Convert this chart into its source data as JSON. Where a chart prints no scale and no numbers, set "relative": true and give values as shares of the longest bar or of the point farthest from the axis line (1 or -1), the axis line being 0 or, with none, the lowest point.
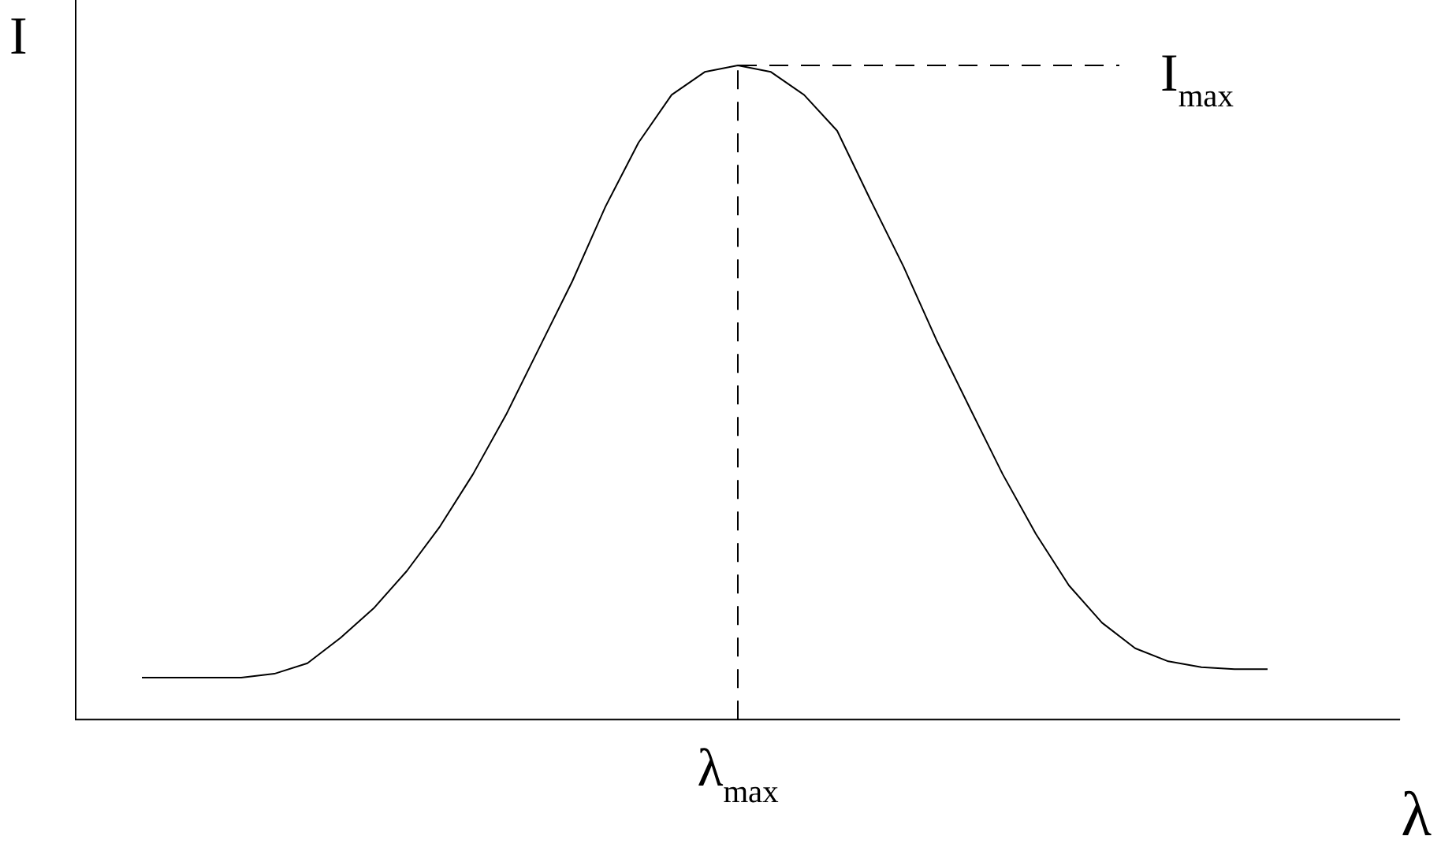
{
  "chart_data": {
    "type": "line",
    "relative": true,
    "xlabel": "λ",
    "ylabel": "I",
    "color": "#000000",
    "grid": false,
    "legend": false,
    "marker": "none",
    "line_style": "solid",
    "categories": [
      null,
      null,
      null,
      null,
      null,
      null,
      null,
      null,
      null,
      null,
      null,
      null,
      null,
      null,
      null,
      null,
      null,
      null,
      null,
      null,
      null,
      null,
      null,
      null,
      null,
      null,
      null,
      null,
      null,
      null,
      null,
      null,
      null,
      null,
      null,
      null,
      null,
      null,
      null,
      null,
      null
    ],
    "values": [
      null,
      null,
      0.064,
      0.064,
      0.064,
      0.064,
      0.07,
      0.086,
      0.125,
      0.17,
      0.227,
      0.295,
      0.375,
      0.466,
      0.568,
      0.67,
      0.784,
      0.882,
      0.955,
      0.99,
      1,
      0.99,
      0.955,
      0.9,
      0.795,
      0.693,
      0.58,
      0.477,
      0.375,
      0.284,
      0.205,
      0.148,
      0.109,
      0.089,
      0.08,
      0.077,
      0.077,
      null,
      null,
      null,
      null
    ],
    "annotations": [
      "λ$_{max}$"
    ],
    "ref_lines": [
      {
        "axis": "y",
        "value": 1,
        "label": "I$_{max}$",
        "line_style": "dashed"
      }
    ]
  }
}
